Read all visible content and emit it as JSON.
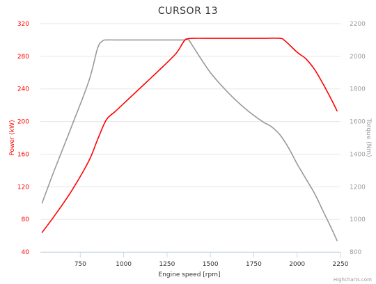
{
  "chart_data": {
    "type": "line",
    "title": "CURSOR 13",
    "xlabel": "Engine speed [rpm]",
    "ylabel": "Power (kW)",
    "y2label": "Torque (Nm)",
    "xlim": [
      520,
      2250
    ],
    "x_ticks": [
      750,
      1000,
      1250,
      1500,
      1750,
      2000,
      2250
    ],
    "ylim": [
      40,
      320
    ],
    "y_ticks": [
      40,
      80,
      120,
      160,
      200,
      240,
      280,
      320
    ],
    "y2lim": [
      800,
      2200
    ],
    "y2_ticks": [
      800,
      1000,
      1200,
      1400,
      1600,
      1800,
      2000,
      2200
    ],
    "grid": true,
    "legend": "none",
    "series": [
      {
        "axis": "left",
        "color": "#ff0000",
        "x": [
          530,
          600,
          700,
          800,
          850,
          900,
          950,
          1000,
          1100,
          1200,
          1300,
          1340,
          1360,
          1400,
          1500,
          1600,
          1700,
          1800,
          1900,
          1930,
          2000,
          2050,
          2100,
          2150,
          2200,
          2230
        ],
        "y": [
          64,
          84,
          115,
          152,
          178,
          202,
          212,
          222,
          242,
          262,
          283,
          296,
          301,
          302,
          302,
          302,
          302,
          302,
          302,
          299,
          285,
          277,
          264,
          246,
          226,
          213
        ]
      },
      {
        "axis": "right",
        "color": "#999999",
        "x": [
          530,
          600,
          700,
          800,
          850,
          880,
          900,
          950,
          1000,
          1100,
          1200,
          1300,
          1350,
          1375,
          1400,
          1500,
          1600,
          1700,
          1800,
          1850,
          1900,
          1950,
          2000,
          2050,
          2100,
          2150,
          2200,
          2230
        ],
        "y": [
          1100,
          1300,
          1570,
          1850,
          2050,
          2095,
          2100,
          2100,
          2100,
          2100,
          2100,
          2100,
          2100,
          2100,
          2060,
          1900,
          1780,
          1680,
          1600,
          1570,
          1520,
          1440,
          1340,
          1250,
          1160,
          1050,
          940,
          870
        ]
      }
    ]
  },
  "credits": "Highcharts.com"
}
